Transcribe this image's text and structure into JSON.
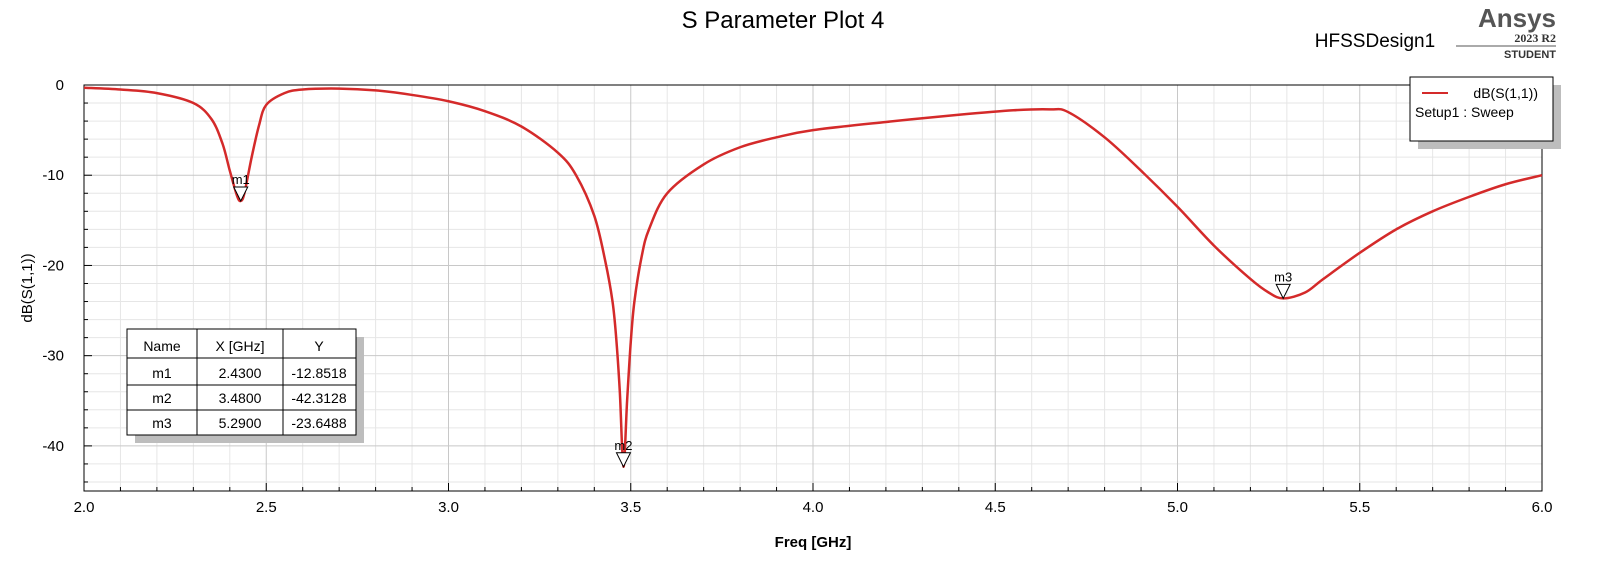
{
  "header": {
    "title": "S Parameter Plot 4",
    "design_name": "HFSSDesign1",
    "brand": "Ansys",
    "version": "2023 R2",
    "edition": "STUDENT"
  },
  "chart_data": {
    "type": "line",
    "title": "S Parameter Plot 4",
    "xlabel": "Freq [GHz]",
    "ylabel": "dB(S(1,1))",
    "xlim": [
      2.0,
      6.0
    ],
    "ylim": [
      -45,
      0
    ],
    "x_ticks": [
      "2.0",
      "2.5",
      "3.0",
      "3.5",
      "4.0",
      "4.5",
      "5.0",
      "5.5",
      "6.0"
    ],
    "y_ticks": [
      "0",
      "-10",
      "-20",
      "-30",
      "-40"
    ],
    "grid": true,
    "legend_position": "top-right",
    "series": [
      {
        "name": "dB(S(1,1))",
        "sub_label": "Setup1 : Sweep",
        "color": "#d42a2a",
        "x": [
          2.0,
          2.1,
          2.2,
          2.3,
          2.35,
          2.38,
          2.4,
          2.42,
          2.43,
          2.44,
          2.46,
          2.48,
          2.5,
          2.55,
          2.6,
          2.7,
          2.8,
          2.9,
          3.0,
          3.1,
          3.2,
          3.3,
          3.35,
          3.4,
          3.43,
          3.45,
          3.46,
          3.47,
          3.48,
          3.49,
          3.5,
          3.51,
          3.53,
          3.55,
          3.6,
          3.7,
          3.8,
          3.9,
          4.0,
          4.2,
          4.4,
          4.55,
          4.65,
          4.7,
          4.8,
          4.9,
          5.0,
          5.1,
          5.2,
          5.25,
          5.29,
          5.35,
          5.4,
          5.5,
          5.6,
          5.7,
          5.8,
          5.9,
          6.0
        ],
        "y": [
          -0.3,
          -0.5,
          -0.9,
          -2.0,
          -3.8,
          -6.5,
          -9.5,
          -12.3,
          -12.85,
          -12.0,
          -8.0,
          -4.5,
          -2.2,
          -0.9,
          -0.5,
          -0.4,
          -0.6,
          -1.1,
          -1.8,
          -2.9,
          -4.6,
          -7.5,
          -10.0,
          -14.5,
          -19.5,
          -24.0,
          -28.0,
          -34.0,
          -42.3,
          -35.0,
          -28.5,
          -24.0,
          -19.0,
          -16.0,
          -12.0,
          -8.8,
          -6.9,
          -5.8,
          -5.0,
          -4.1,
          -3.3,
          -2.8,
          -2.7,
          -3.0,
          -5.8,
          -9.5,
          -13.5,
          -17.8,
          -21.5,
          -23.0,
          -23.65,
          -23.0,
          -21.5,
          -18.6,
          -16.0,
          -14.0,
          -12.4,
          -11.0,
          -10.0
        ]
      }
    ],
    "markers": [
      {
        "name": "m1",
        "x": 2.43,
        "y": -12.8518
      },
      {
        "name": "m2",
        "x": 3.48,
        "y": -42.3128
      },
      {
        "name": "m3",
        "x": 5.29,
        "y": -23.6488
      }
    ],
    "marker_table": {
      "headers": [
        "Name",
        "X [GHz]",
        "Y"
      ],
      "rows": [
        [
          "m1",
          "2.4300",
          "-12.8518"
        ],
        [
          "m2",
          "3.4800",
          "-42.3128"
        ],
        [
          "m3",
          "5.2900",
          "-23.6488"
        ]
      ]
    }
  }
}
